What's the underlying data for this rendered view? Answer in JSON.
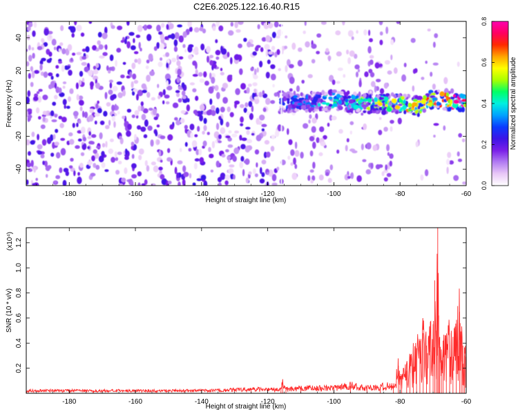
{
  "title": "C2E6.2025.122.16.40.R15",
  "chart_data": [
    {
      "type": "heatmap",
      "title": "C2E6.2025.122.16.40.R15",
      "xlabel": "Height of straight line (km)",
      "ylabel": "Frequency (Hz)",
      "xlim": [
        -193,
        -60
      ],
      "ylim": [
        -50,
        50
      ],
      "xticks": [
        -180,
        -160,
        -140,
        -120,
        -100,
        -80,
        -60
      ],
      "yticks": [
        -40,
        -20,
        0,
        20,
        40
      ],
      "colorbar": {
        "label": "Normalized spectral amplitude",
        "range": [
          0.0,
          0.8
        ],
        "ticks": [
          "0.0",
          "0.2",
          "0.4",
          "0.6",
          "0.8"
        ],
        "colormap": [
          "#ffffff",
          "#e9c8f7",
          "#b27cf2",
          "#7a1fe8",
          "#3c14e6",
          "#0a3bff",
          "#00a2ff",
          "#00f0e0",
          "#00ff66",
          "#aaff00",
          "#ffff00",
          "#ffa500",
          "#ff2a00",
          "#ff0060",
          "#ff00b0"
        ]
      },
      "signal_band": {
        "x_start": -116,
        "x_end": -60,
        "center_hz": [
          [
            -116,
            0
          ],
          [
            -100,
            2
          ],
          [
            -90,
            0
          ],
          [
            -80,
            0
          ],
          [
            -74,
            -2
          ],
          [
            -70,
            3
          ],
          [
            -64,
            1
          ],
          [
            -60,
            0
          ]
        ],
        "width_hz": 8
      },
      "noise_cutoff_km": -82,
      "grid": false
    },
    {
      "type": "line",
      "xlabel": "Height of straight line (km)",
      "ylabel": "SNR (10 * v/v)",
      "y_multiplier": "(x10⁴)",
      "xlim": [
        -193,
        -60
      ],
      "ylim": [
        0,
        1.32
      ],
      "xticks": [
        -180,
        -160,
        -140,
        -120,
        -100,
        -80,
        -60
      ],
      "yticks": [
        "0.2",
        "0.4",
        "0.6",
        "0.8",
        "1.0",
        "1.2"
      ],
      "line_color": "#ff2a2a",
      "series": [
        {
          "x": [
            -193,
            -180,
            -160,
            -140,
            -125,
            -116,
            -115.5,
            -114.5,
            -110,
            -100,
            -95,
            -90,
            -86,
            -82,
            -80.5,
            -80,
            -79.5,
            -78,
            -77,
            -76,
            -75,
            -74,
            -73,
            -72,
            -71,
            -70,
            -69.5,
            -69,
            -68.6,
            -68.3,
            -68,
            -67.5,
            -67,
            -66,
            -65,
            -64,
            -63,
            -62,
            -61.5,
            -61,
            -60.5,
            -60
          ],
          "y": [
            0.02,
            0.02,
            0.02,
            0.02,
            0.03,
            0.03,
            0.09,
            0.03,
            0.04,
            0.04,
            0.06,
            0.04,
            0.05,
            0.06,
            0.22,
            0.12,
            0.14,
            0.18,
            0.24,
            0.3,
            0.36,
            0.42,
            0.48,
            0.38,
            0.4,
            0.55,
            0.9,
            0.5,
            1.32,
            0.62,
            0.45,
            0.35,
            0.42,
            0.38,
            0.48,
            0.45,
            0.5,
            0.65,
            0.45,
            0.38,
            0.3,
            0.25
          ]
        }
      ],
      "grid": false
    }
  ]
}
